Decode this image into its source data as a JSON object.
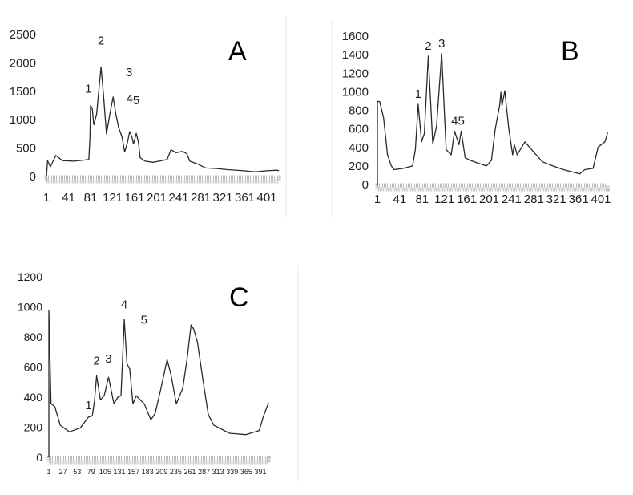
{
  "chart_data": [
    {
      "type": "line",
      "title": "A",
      "xlabel": "",
      "ylabel": "",
      "ylim": [
        0,
        2500
      ],
      "y_ticks": [
        "0",
        "500",
        "1000",
        "1500",
        "2000",
        "2500"
      ],
      "x_ticks": [
        "1",
        "41",
        "81",
        "121",
        "161",
        "201",
        "241",
        "281",
        "321",
        "361",
        "401"
      ],
      "xlim": [
        1,
        423
      ],
      "grid": false,
      "annotations": [
        {
          "text": "1",
          "x": 80,
          "y": 1250
        },
        {
          "text": "2",
          "x": 100,
          "y": 1930
        },
        {
          "text": "3",
          "x": 122,
          "y": 1400
        },
        {
          "text": "4",
          "x": 152,
          "y": 790
        },
        {
          "text": "5",
          "x": 164,
          "y": 760
        }
      ],
      "series": [
        {
          "name": "A",
          "points": [
            [
              1,
              0
            ],
            [
              3,
              280
            ],
            [
              8,
              170
            ],
            [
              18,
              370
            ],
            [
              30,
              280
            ],
            [
              50,
              270
            ],
            [
              70,
              290
            ],
            [
              78,
              300
            ],
            [
              80,
              700
            ],
            [
              81,
              1250
            ],
            [
              84,
              1200
            ],
            [
              87,
              910
            ],
            [
              92,
              1100
            ],
            [
              100,
              1930
            ],
            [
              104,
              1500
            ],
            [
              110,
              750
            ],
            [
              116,
              1100
            ],
            [
              122,
              1400
            ],
            [
              127,
              1100
            ],
            [
              132,
              860
            ],
            [
              138,
              700
            ],
            [
              143,
              430
            ],
            [
              148,
              600
            ],
            [
              152,
              790
            ],
            [
              156,
              700
            ],
            [
              159,
              570
            ],
            [
              164,
              760
            ],
            [
              168,
              600
            ],
            [
              171,
              330
            ],
            [
              180,
              270
            ],
            [
              195,
              250
            ],
            [
              210,
              280
            ],
            [
              220,
              300
            ],
            [
              227,
              470
            ],
            [
              236,
              420
            ],
            [
              248,
              440
            ],
            [
              256,
              400
            ],
            [
              261,
              270
            ],
            [
              275,
              220
            ],
            [
              290,
              150
            ],
            [
              310,
              140
            ],
            [
              330,
              120
            ],
            [
              360,
              100
            ],
            [
              380,
              80
            ],
            [
              400,
              100
            ],
            [
              420,
              110
            ],
            [
              423,
              100
            ]
          ]
        }
      ]
    },
    {
      "type": "line",
      "title": "B",
      "xlabel": "",
      "ylabel": "",
      "ylim": [
        0,
        1600
      ],
      "y_ticks": [
        "0",
        "200",
        "400",
        "600",
        "800",
        "1000",
        "1200",
        "1400",
        "1600"
      ],
      "x_ticks": [
        "1",
        "41",
        "81",
        "121",
        "161",
        "201",
        "241",
        "281",
        "321",
        "361",
        "401"
      ],
      "xlim": [
        1,
        413
      ],
      "grid": false,
      "annotations": [
        {
          "text": "1",
          "x": 74,
          "y": 865
        },
        {
          "text": "2",
          "x": 92,
          "y": 1385
        },
        {
          "text": "3",
          "x": 116,
          "y": 1410
        },
        {
          "text": "4",
          "x": 139,
          "y": 575
        },
        {
          "text": "5",
          "x": 151,
          "y": 575
        }
      ],
      "series": [
        {
          "name": "B",
          "points": [
            [
              1,
              0
            ],
            [
              1,
              895
            ],
            [
              5,
              895
            ],
            [
              12,
              720
            ],
            [
              19,
              320
            ],
            [
              26,
              200
            ],
            [
              31,
              160
            ],
            [
              48,
              175
            ],
            [
              64,
              200
            ],
            [
              69,
              375
            ],
            [
              74,
              865
            ],
            [
              80,
              460
            ],
            [
              85,
              550
            ],
            [
              92,
              1385
            ],
            [
              100,
              435
            ],
            [
              107,
              635
            ],
            [
              116,
              1410
            ],
            [
              124,
              375
            ],
            [
              133,
              320
            ],
            [
              139,
              575
            ],
            [
              147,
              430
            ],
            [
              151,
              575
            ],
            [
              158,
              290
            ],
            [
              167,
              260
            ],
            [
              181,
              230
            ],
            [
              196,
              200
            ],
            [
              205,
              260
            ],
            [
              212,
              605
            ],
            [
              220,
              865
            ],
            [
              222,
              995
            ],
            [
              224,
              850
            ],
            [
              229,
              1010
            ],
            [
              236,
              605
            ],
            [
              243,
              320
            ],
            [
              246,
              430
            ],
            [
              251,
              320
            ],
            [
              265,
              460
            ],
            [
              277,
              375
            ],
            [
              296,
              245
            ],
            [
              315,
              200
            ],
            [
              334,
              160
            ],
            [
              363,
              115
            ],
            [
              372,
              160
            ],
            [
              387,
              175
            ],
            [
              396,
              405
            ],
            [
              408,
              460
            ],
            [
              413,
              560
            ]
          ]
        }
      ]
    },
    {
      "type": "line",
      "title": "C",
      "xlabel": "",
      "ylabel": "",
      "ylim": [
        0,
        1200
      ],
      "y_ticks": [
        "0",
        "200",
        "400",
        "600",
        "800",
        "1000",
        "1200"
      ],
      "x_ticks": [
        "1",
        "27",
        "53",
        "79",
        "105",
        "131",
        "157",
        "183",
        "209",
        "235",
        "261",
        "287",
        "313",
        "339",
        "365",
        "391"
      ],
      "xlim": [
        1,
        406
      ],
      "grid": false,
      "annotations": [
        {
          "text": "1",
          "x": 83,
          "y": 300
        },
        {
          "text": "2",
          "x": 89,
          "y": 542
        },
        {
          "text": "3",
          "x": 111,
          "y": 533
        },
        {
          "text": "4",
          "x": 140,
          "y": 916
        },
        {
          "text": "5",
          "x": 147,
          "y": 600
        }
      ],
      "series": [
        {
          "name": "C",
          "points": [
            [
              1,
              0
            ],
            [
              1,
              978
            ],
            [
              5,
              355
            ],
            [
              12,
              338
            ],
            [
              22,
              213
            ],
            [
              39,
              169
            ],
            [
              59,
              196
            ],
            [
              74,
              267
            ],
            [
              81,
              276
            ],
            [
              85,
              373
            ],
            [
              89,
              542
            ],
            [
              96,
              382
            ],
            [
              103,
              409
            ],
            [
              111,
              533
            ],
            [
              121,
              355
            ],
            [
              128,
              400
            ],
            [
              134,
              409
            ],
            [
              140,
              916
            ],
            [
              145,
              622
            ],
            [
              150,
              587
            ],
            [
              156,
              355
            ],
            [
              162,
              409
            ],
            [
              177,
              355
            ],
            [
              189,
              249
            ],
            [
              197,
              293
            ],
            [
              209,
              480
            ],
            [
              219,
              649
            ],
            [
              226,
              551
            ],
            [
              236,
              355
            ],
            [
              248,
              462
            ],
            [
              256,
              658
            ],
            [
              263,
              880
            ],
            [
              268,
              853
            ],
            [
              275,
              764
            ],
            [
              285,
              516
            ],
            [
              295,
              284
            ],
            [
              305,
              213
            ],
            [
              334,
              160
            ],
            [
              364,
              151
            ],
            [
              389,
              178
            ],
            [
              396,
              267
            ],
            [
              406,
              364
            ]
          ]
        }
      ]
    }
  ]
}
